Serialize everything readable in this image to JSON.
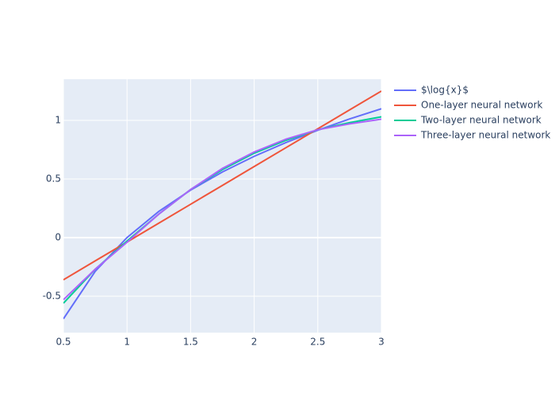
{
  "chart_data": {
    "type": "line",
    "x": [
      0.5,
      0.75,
      1,
      1.25,
      1.5,
      1.75,
      2,
      2.25,
      2.5,
      2.75,
      3
    ],
    "series": [
      {
        "name": "$\\log{x}$",
        "color": "#636efa",
        "values": [
          -0.693,
          -0.288,
          0,
          0.223,
          0.405,
          0.56,
          0.693,
          0.811,
          0.916,
          1.012,
          1.099
        ]
      },
      {
        "name": "One-layer neural network",
        "color": "#EF553B",
        "values": [
          -0.36,
          -0.199,
          -0.038,
          0.123,
          0.284,
          0.445,
          0.606,
          0.767,
          0.928,
          1.089,
          1.25
        ]
      },
      {
        "name": "Two-layer neural network",
        "color": "#00cc96",
        "values": [
          -0.56,
          -0.27,
          -0.03,
          0.2,
          0.41,
          0.58,
          0.72,
          0.83,
          0.92,
          0.98,
          1.03
        ]
      },
      {
        "name": "Three-layer neural network",
        "color": "#ab63fa",
        "values": [
          -0.53,
          -0.27,
          -0.04,
          0.2,
          0.41,
          0.59,
          0.73,
          0.84,
          0.92,
          0.97,
          1.01
        ]
      }
    ],
    "xlim": [
      0.5,
      3
    ],
    "xticks": [
      0.5,
      1,
      1.5,
      2,
      2.5,
      3
    ],
    "ylim": [
      -0.811,
      1.351
    ],
    "yticks": [
      -0.5,
      0,
      0.5,
      1
    ],
    "grid": true,
    "legend": "right"
  }
}
